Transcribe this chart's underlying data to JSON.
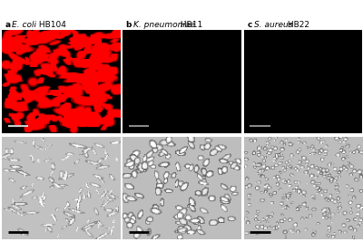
{
  "labels": [
    {
      "letter": "A",
      "species": "E. coli",
      "strain": " HB104"
    },
    {
      "letter": "B",
      "species": "K. pneumoniae",
      "strain": " HB11"
    },
    {
      "letter": "C",
      "species": "S. aureus",
      "strain": " HB22"
    }
  ],
  "fig_bg": "#ffffff",
  "label_fontsize": 7,
  "top_bg": "#000000",
  "bottom_bg_A": "#c0c0c0",
  "bottom_bg_B": "#b8b8b8",
  "bottom_bg_C": "#b8b8b8",
  "scale_bar_top_color": "#aaaaaa",
  "scale_bar_bottom_color": "#111111"
}
